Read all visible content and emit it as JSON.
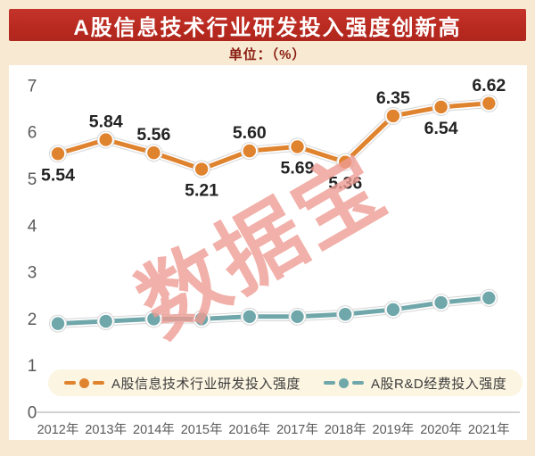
{
  "header": {
    "title": "A股信息技术行业研发投入强度创新高",
    "unit_label": "单位：（%）"
  },
  "watermark": {
    "text": "数据宝",
    "color": "#ee9d94"
  },
  "colors": {
    "page_background": "#f8e9d2",
    "banner_red": "#b92a20",
    "unit_text": "#8a1d12",
    "panel_background": "#ffffff",
    "axis_text": "#5a5a5a",
    "data_label_text": "#232323",
    "line_casing": "#d6d6d6",
    "series_orange": "#e0832e",
    "series_teal": "#6fa7ab",
    "legend_background": "#fcf5e1",
    "watermark_pink": "#ee9d94"
  },
  "chart_data": {
    "type": "line",
    "title": "A股信息技术行业研发投入强度创新高",
    "unit": "%",
    "categories": [
      "2012年",
      "2013年",
      "2014年",
      "2015年",
      "2016年",
      "2017年",
      "2018年",
      "2019年",
      "2020年",
      "2021年"
    ],
    "series": [
      {
        "name": "A股信息技术行业研发投入强度",
        "color": "#e0832e",
        "values": [
          5.54,
          5.84,
          5.56,
          5.21,
          5.6,
          5.69,
          5.36,
          6.35,
          6.54,
          6.62
        ],
        "labels_visible": true,
        "label_positions": [
          "below",
          "above",
          "above",
          "below",
          "above",
          "below",
          "below",
          "above",
          "below",
          "above"
        ]
      },
      {
        "name": "A股R&D经费投入强度",
        "color": "#6fa7ab",
        "values": [
          1.9,
          1.95,
          2.0,
          2.0,
          2.05,
          2.05,
          2.1,
          2.2,
          2.35,
          2.45
        ],
        "labels_visible": false,
        "label_positions": []
      }
    ],
    "ylim": [
      0,
      7
    ],
    "yticks": [
      0,
      1,
      2,
      3,
      4,
      5,
      6,
      7
    ],
    "grid": false,
    "legend_position": "bottom"
  }
}
